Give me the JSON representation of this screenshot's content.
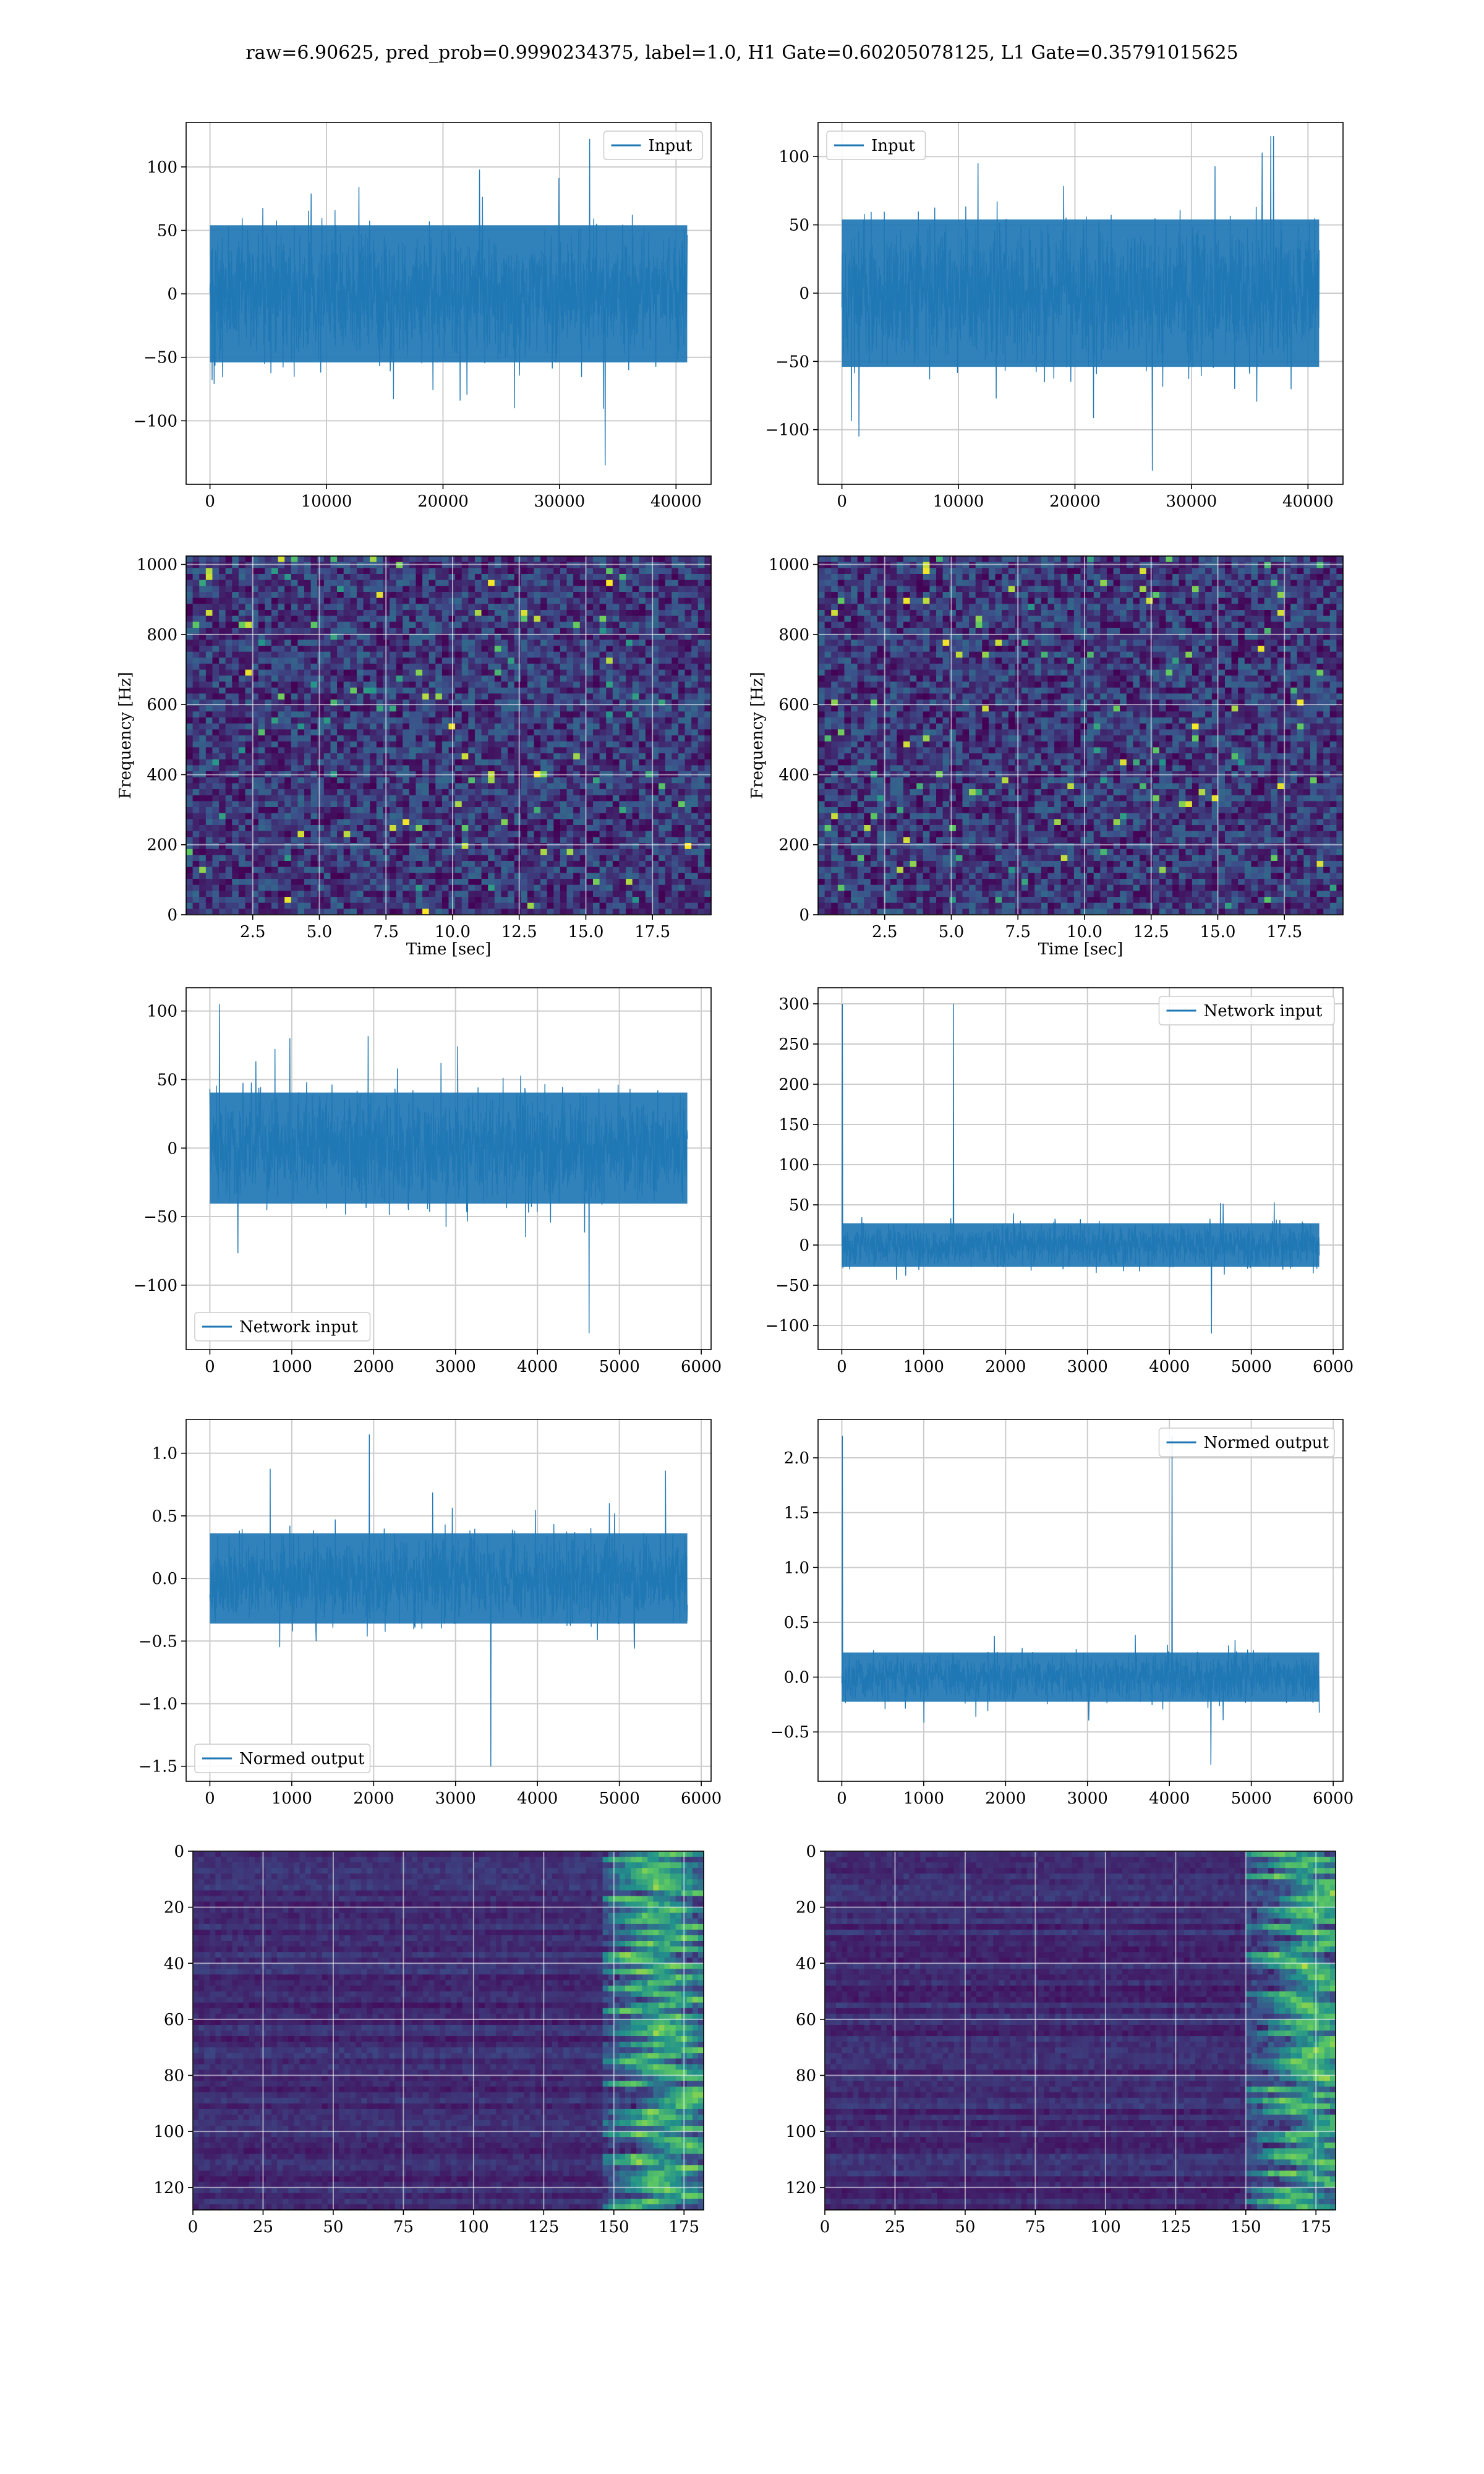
{
  "figure": {
    "suptitle": "raw=6.90625, pred_prob=0.9990234375, label=1.0, H1 Gate=0.60205078125, L1 Gate=0.35791015625"
  },
  "colors": {
    "line": "#1f77b4",
    "grid": "#cccccc",
    "viridis_low": "#440154",
    "viridis_high": "#fde725"
  },
  "chart_data": [
    {
      "id": "r1c1",
      "type": "line",
      "title": "",
      "xlabel": "",
      "ylabel": "",
      "legend": {
        "label": "Input",
        "loc": "top-right"
      },
      "series": [
        {
          "name": "Input",
          "noise_band": [
            -60,
            60
          ],
          "peaks": [
            -135,
            122
          ],
          "x_range": [
            0,
            40960
          ]
        }
      ],
      "xlim": [
        -2048,
        43008
      ],
      "ylim": [
        -150,
        135
      ],
      "xticks": [
        0,
        10000,
        20000,
        30000,
        40000
      ],
      "xticklabels": [
        "0",
        "10000",
        "20000",
        "30000",
        "40000"
      ],
      "yticks": [
        -100,
        -50,
        0,
        50,
        100
      ],
      "yticklabels": [
        "−100",
        "−50",
        "0",
        "50",
        "100"
      ],
      "grid": true
    },
    {
      "id": "r1c2",
      "type": "line",
      "title": "",
      "xlabel": "",
      "ylabel": "",
      "legend": {
        "label": "Input",
        "loc": "top-left"
      },
      "series": [
        {
          "name": "Input",
          "noise_band": [
            -60,
            60
          ],
          "peaks": [
            -130,
            115
          ],
          "x_range": [
            0,
            40960
          ]
        }
      ],
      "xlim": [
        -2048,
        43008
      ],
      "ylim": [
        -140,
        125
      ],
      "xticks": [
        0,
        10000,
        20000,
        30000,
        40000
      ],
      "xticklabels": [
        "0",
        "10000",
        "20000",
        "30000",
        "40000"
      ],
      "yticks": [
        -100,
        -50,
        0,
        50,
        100
      ],
      "yticklabels": [
        "−100",
        "−50",
        "0",
        "50",
        "100"
      ],
      "grid": true
    },
    {
      "id": "r2c1",
      "type": "heatmap",
      "title": "",
      "xlabel": "Time [sec]",
      "ylabel": "Frequency [Hz]",
      "xlim": [
        0,
        19.7
      ],
      "ylim": [
        0,
        1024
      ],
      "xticks": [
        2.5,
        5.0,
        7.5,
        10.0,
        12.5,
        15.0,
        17.5
      ],
      "xticklabels": [
        "2.5",
        "5.0",
        "7.5",
        "10.0",
        "12.5",
        "15.0",
        "17.5"
      ],
      "yticks": [
        0,
        200,
        400,
        600,
        800,
        1000
      ],
      "yticklabels": [
        "0",
        "200",
        "400",
        "600",
        "800",
        "1000"
      ],
      "colormap": "viridis",
      "grid": true
    },
    {
      "id": "r2c2",
      "type": "heatmap",
      "title": "",
      "xlabel": "Time [sec]",
      "ylabel": "Frequency [Hz]",
      "xlim": [
        0,
        19.7
      ],
      "ylim": [
        0,
        1024
      ],
      "xticks": [
        2.5,
        5.0,
        7.5,
        10.0,
        12.5,
        15.0,
        17.5
      ],
      "xticklabels": [
        "2.5",
        "5.0",
        "7.5",
        "10.0",
        "12.5",
        "15.0",
        "17.5"
      ],
      "yticks": [
        0,
        200,
        400,
        600,
        800,
        1000
      ],
      "yticklabels": [
        "0",
        "200",
        "400",
        "600",
        "800",
        "1000"
      ],
      "colormap": "viridis",
      "grid": true
    },
    {
      "id": "r3c1",
      "type": "line",
      "title": "",
      "xlabel": "",
      "ylabel": "",
      "legend": {
        "label": "Network input",
        "loc": "bottom-left"
      },
      "series": [
        {
          "name": "Network input",
          "noise_band": [
            -45,
            45
          ],
          "peaks": [
            -135,
            105
          ],
          "x_range": [
            0,
            5830
          ]
        }
      ],
      "xlim": [
        -290,
        6120
      ],
      "ylim": [
        -147,
        117
      ],
      "xticks": [
        0,
        1000,
        2000,
        3000,
        4000,
        5000,
        6000
      ],
      "xticklabels": [
        "0",
        "1000",
        "2000",
        "3000",
        "4000",
        "5000",
        "6000"
      ],
      "yticks": [
        -100,
        -50,
        0,
        50,
        100
      ],
      "yticklabels": [
        "−100",
        "−50",
        "0",
        "50",
        "100"
      ],
      "grid": true
    },
    {
      "id": "r3c2",
      "type": "line",
      "title": "",
      "xlabel": "",
      "ylabel": "",
      "legend": {
        "label": "Network input",
        "loc": "top-right"
      },
      "series": [
        {
          "name": "Network input",
          "noise_band": [
            -30,
            30
          ],
          "peaks": [
            -110,
            300
          ],
          "x_range": [
            0,
            5830
          ]
        }
      ],
      "xlim": [
        -290,
        6120
      ],
      "ylim": [
        -130,
        320
      ],
      "xticks": [
        0,
        1000,
        2000,
        3000,
        4000,
        5000,
        6000
      ],
      "xticklabels": [
        "0",
        "1000",
        "2000",
        "3000",
        "4000",
        "5000",
        "6000"
      ],
      "yticks": [
        -100,
        -50,
        0,
        50,
        100,
        150,
        200,
        250,
        300
      ],
      "yticklabels": [
        "−100",
        "−50",
        "0",
        "50",
        "100",
        "150",
        "200",
        "250",
        "300"
      ],
      "grid": true
    },
    {
      "id": "r4c1",
      "type": "line",
      "title": "",
      "xlabel": "",
      "ylabel": "",
      "legend": {
        "label": "Normed output",
        "loc": "bottom-left"
      },
      "series": [
        {
          "name": "Normed output",
          "noise_band": [
            -0.4,
            0.4
          ],
          "peaks": [
            -1.5,
            1.15
          ],
          "x_range": [
            0,
            5830
          ]
        }
      ],
      "xlim": [
        -290,
        6120
      ],
      "ylim": [
        -1.62,
        1.27
      ],
      "xticks": [
        0,
        1000,
        2000,
        3000,
        4000,
        5000,
        6000
      ],
      "xticklabels": [
        "0",
        "1000",
        "2000",
        "3000",
        "4000",
        "5000",
        "6000"
      ],
      "yticks": [
        -1.5,
        -1.0,
        -0.5,
        0.0,
        0.5,
        1.0
      ],
      "yticklabels": [
        "−1.5",
        "−1.0",
        "−0.5",
        "0.0",
        "0.5",
        "1.0"
      ],
      "grid": true
    },
    {
      "id": "r4c2",
      "type": "line",
      "title": "",
      "xlabel": "",
      "ylabel": "",
      "legend": {
        "label": "Normed output",
        "loc": "top-right"
      },
      "series": [
        {
          "name": "Normed output",
          "noise_band": [
            -0.25,
            0.25
          ],
          "peaks": [
            -0.8,
            2.2
          ],
          "x_range": [
            0,
            5830
          ]
        }
      ],
      "xlim": [
        -290,
        6120
      ],
      "ylim": [
        -0.95,
        2.35
      ],
      "xticks": [
        0,
        1000,
        2000,
        3000,
        4000,
        5000,
        6000
      ],
      "xticklabels": [
        "0",
        "1000",
        "2000",
        "3000",
        "4000",
        "5000",
        "6000"
      ],
      "yticks": [
        -0.5,
        0.0,
        0.5,
        1.0,
        1.5,
        2.0
      ],
      "yticklabels": [
        "−0.5",
        "0.0",
        "0.5",
        "1.0",
        "1.5",
        "2.0"
      ],
      "grid": true
    },
    {
      "id": "r5c1",
      "type": "heatmap",
      "title": "",
      "xlabel": "",
      "ylabel": "",
      "xlim": [
        0,
        182
      ],
      "ylim": [
        128,
        0
      ],
      "activity_onset": 145,
      "xticks": [
        0,
        25,
        50,
        75,
        100,
        125,
        150,
        175
      ],
      "xticklabels": [
        "0",
        "25",
        "50",
        "75",
        "100",
        "125",
        "150",
        "175"
      ],
      "yticks": [
        0,
        20,
        40,
        60,
        80,
        100,
        120
      ],
      "yticklabels": [
        "0",
        "20",
        "40",
        "60",
        "80",
        "100",
        "120"
      ],
      "colormap": "viridis",
      "grid": true
    },
    {
      "id": "r5c2",
      "type": "heatmap",
      "title": "",
      "xlabel": "",
      "ylabel": "",
      "xlim": [
        0,
        182
      ],
      "ylim": [
        128,
        0
      ],
      "activity_onset": 150,
      "xticks": [
        0,
        25,
        50,
        75,
        100,
        125,
        150,
        175
      ],
      "xticklabels": [
        "0",
        "25",
        "50",
        "75",
        "100",
        "125",
        "150",
        "175"
      ],
      "yticks": [
        0,
        20,
        40,
        60,
        80,
        100,
        120
      ],
      "yticklabels": [
        "0",
        "20",
        "40",
        "60",
        "80",
        "100",
        "120"
      ],
      "colormap": "viridis",
      "grid": true
    }
  ]
}
